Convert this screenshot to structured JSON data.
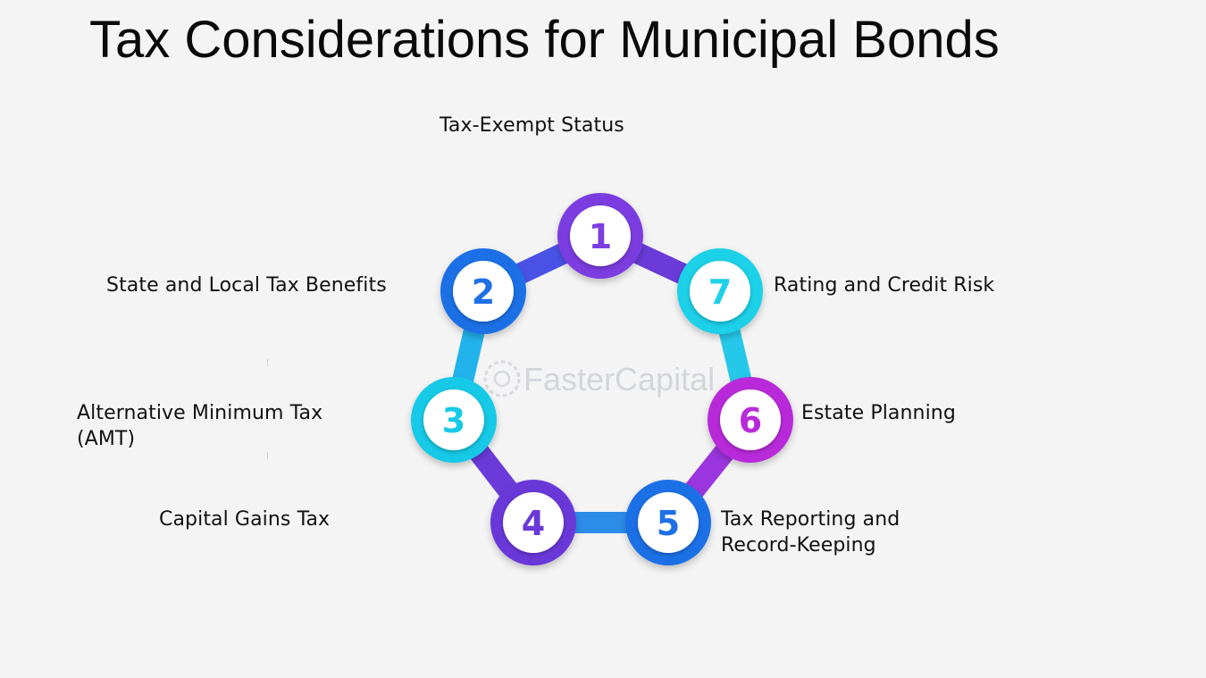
{
  "title": "Tax Considerations for Municipal Bonds",
  "watermark": "FasterCapital",
  "steps": [
    {
      "number": "1",
      "label": [
        "Tax-Exempt Status"
      ],
      "color": "#7c3ee0"
    },
    {
      "number": "2",
      "label": [
        "State and Local Tax Benefits"
      ],
      "color": "#1f6fe6"
    },
    {
      "number": "3",
      "label": [
        "Alternative Minimum Tax",
        "(AMT)"
      ],
      "color": "#17c9e6"
    },
    {
      "number": "4",
      "label": [
        "Capital Gains Tax"
      ],
      "color": "#6a37d8"
    },
    {
      "number": "5",
      "label": [
        "Tax Reporting and",
        "Record-Keeping"
      ],
      "color": "#1f6fe6"
    },
    {
      "number": "6",
      "label": [
        "Estate Planning"
      ],
      "color": "#b82bd9"
    },
    {
      "number": "7",
      "label": [
        "Rating and Credit Risk"
      ],
      "color": "#1fd0e8"
    }
  ]
}
